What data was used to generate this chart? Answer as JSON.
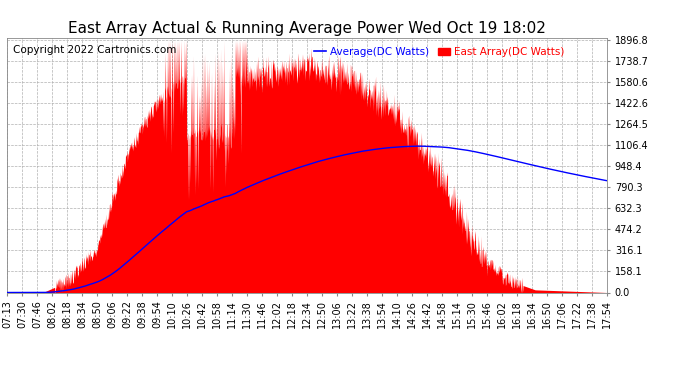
{
  "title": "East Array Actual & Running Average Power Wed Oct 19 18:02",
  "copyright": "Copyright 2022 Cartronics.com",
  "legend_labels": [
    "Average(DC Watts)",
    "East Array(DC Watts)"
  ],
  "legend_colors": [
    "blue",
    "red"
  ],
  "yticks": [
    0.0,
    158.1,
    316.1,
    474.2,
    632.3,
    790.3,
    948.4,
    1106.4,
    1264.5,
    1422.6,
    1580.6,
    1738.7,
    1896.8
  ],
  "xtick_labels": [
    "07:13",
    "07:30",
    "07:46",
    "08:02",
    "08:18",
    "08:34",
    "08:50",
    "09:06",
    "09:22",
    "09:38",
    "09:54",
    "10:10",
    "10:26",
    "10:42",
    "10:58",
    "11:14",
    "11:30",
    "11:46",
    "12:02",
    "12:18",
    "12:34",
    "12:50",
    "13:06",
    "13:22",
    "13:38",
    "13:54",
    "14:10",
    "14:26",
    "14:42",
    "14:58",
    "15:14",
    "15:30",
    "15:46",
    "16:02",
    "16:18",
    "16:34",
    "16:50",
    "17:06",
    "17:22",
    "17:38",
    "17:54"
  ],
  "ymax": 1896.8,
  "ymin": 0.0,
  "background_color": "#ffffff",
  "plot_bg_color": "#ffffff",
  "grid_color": "#b0b0b0",
  "title_color": "#000000",
  "title_fontsize": 11,
  "axis_fontsize": 7,
  "copyright_fontsize": 7.5
}
